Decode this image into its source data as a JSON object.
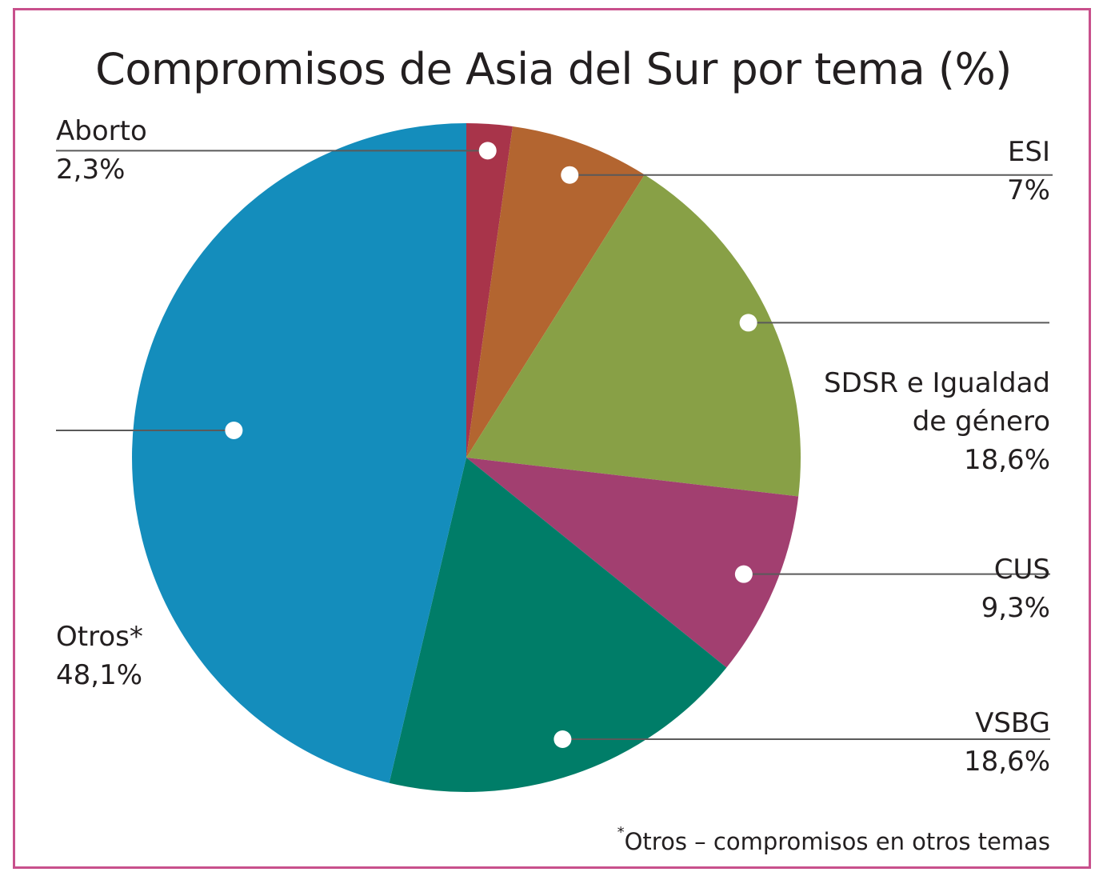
{
  "chart_data": {
    "type": "pie",
    "title": "Compromisos de Asia del Sur por tema (%)",
    "categories": [
      "Aborto",
      "ESI",
      "SDSR e Igualdad de género",
      "CUS",
      "VSBG",
      "Otros*"
    ],
    "name_lines": [
      [
        "Aborto"
      ],
      [
        "ESI"
      ],
      [
        "SDSR e Igualdad",
        "de género"
      ],
      [
        "CUS"
      ],
      [
        "VSBG"
      ],
      [
        "Otros*"
      ]
    ],
    "values": [
      2.3,
      7,
      18.6,
      9.3,
      18.6,
      48.1
    ],
    "value_labels": [
      "2,3%",
      "7%",
      "18,6%",
      "9,3%",
      "18,6%",
      "48,1%"
    ],
    "colors": [
      "#a8344a",
      "#b36530",
      "#88a046",
      "#a23f70",
      "#007d68",
      "#148dbc"
    ],
    "footnote_mark": "*",
    "footnote": "Otros – compromisos en otros temas"
  }
}
